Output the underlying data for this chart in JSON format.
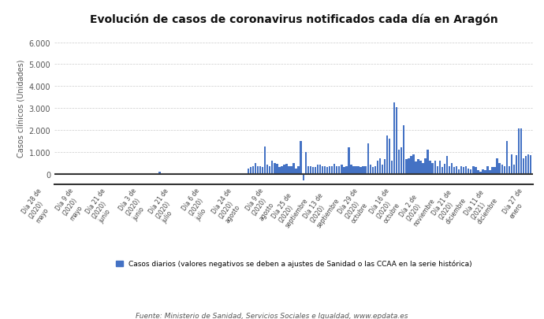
{
  "title": "Evolución de casos de coronavirus notificados cada día en Aragón",
  "ylabel": "Casos clínicos (Unidades)",
  "bar_color": "#4472c4",
  "background_color": "#ffffff",
  "legend_label": "Casos diarios (valores negativos se deben a ajustes de Sanidad o las CCAA en la serie histórica)",
  "footer": "Fuente: Ministerio de Sanidad, Servicios Sociales e Igualdad, www.epdata.es",
  "ylim": [
    -500,
    6500
  ],
  "yticks": [
    0,
    1000,
    2000,
    3000,
    4000,
    5000,
    6000
  ],
  "ytick_labels": [
    "0",
    "1.000",
    "2.000",
    "3.000",
    "4.000",
    "5.000",
    "6.000"
  ],
  "xtick_labels": [
    "Día 28 de\n(2020)\nmayo",
    "Día 9 de\n(2020)\nmayo",
    "Día 21 de\n(2020)\njunio",
    "Día 3 de\n(2020)\njunio",
    "Día 21 de\n(2020)\njulio",
    "Día 6 de\n(2020)\njulio",
    "Día 24 de\n(2020)\nagosto",
    "Día 9 de\n(2020)\nagosto",
    "Día 25 de\n(2020)\nseptiembre",
    "Día 13 de\n(2020)\nseptiembre",
    "Día 29 de\n(2020)\noctubre",
    "Día 16 de\n(2020)\noctubre",
    "Día 2 de\n(2020)\nnoviembre",
    "Día 21 de\n(2020)\ndiciembre",
    "Día 11 de\n(2021)\ndiciembre",
    "Día 27 de\nenero"
  ],
  "values": [
    5,
    0,
    0,
    2,
    0,
    0,
    0,
    0,
    0,
    0,
    0,
    0,
    0,
    0,
    0,
    0,
    0,
    0,
    0,
    0,
    0,
    0,
    0,
    0,
    0,
    0,
    0,
    0,
    0,
    0,
    0,
    0,
    0,
    0,
    0,
    0,
    0,
    0,
    0,
    0,
    0,
    0,
    0,
    80,
    0,
    0,
    0,
    0,
    0,
    0,
    0,
    0,
    0,
    0,
    0,
    0,
    0,
    0,
    0,
    0,
    30,
    0,
    0,
    0,
    0,
    0,
    0,
    0,
    0,
    0,
    0,
    0,
    0,
    0,
    0,
    0,
    0,
    0,
    0,
    0,
    250,
    300,
    350,
    500,
    350,
    350,
    300,
    1250,
    400,
    350,
    600,
    500,
    450,
    300,
    350,
    400,
    450,
    350,
    350,
    500,
    250,
    350,
    1500,
    -300,
    1000,
    350,
    350,
    300,
    300,
    400,
    400,
    350,
    350,
    300,
    350,
    350,
    450,
    350,
    350,
    400,
    300,
    350,
    1200,
    400,
    350,
    350,
    350,
    300,
    350,
    350,
    1400,
    400,
    300,
    350,
    600,
    700,
    400,
    650,
    1750,
    1600,
    600,
    3250,
    3050,
    1100,
    1200,
    2200,
    650,
    700,
    800,
    900,
    550,
    650,
    600,
    500,
    700,
    1100,
    600,
    500,
    600,
    350,
    600,
    300,
    450,
    800,
    350,
    500,
    300,
    350,
    200,
    350,
    300,
    350,
    250,
    200,
    350,
    300,
    150,
    100,
    200,
    150,
    350,
    150,
    300,
    300,
    700,
    500,
    400,
    350,
    1500,
    350,
    900,
    400,
    850,
    2050,
    2050,
    700,
    800,
    900,
    850
  ]
}
